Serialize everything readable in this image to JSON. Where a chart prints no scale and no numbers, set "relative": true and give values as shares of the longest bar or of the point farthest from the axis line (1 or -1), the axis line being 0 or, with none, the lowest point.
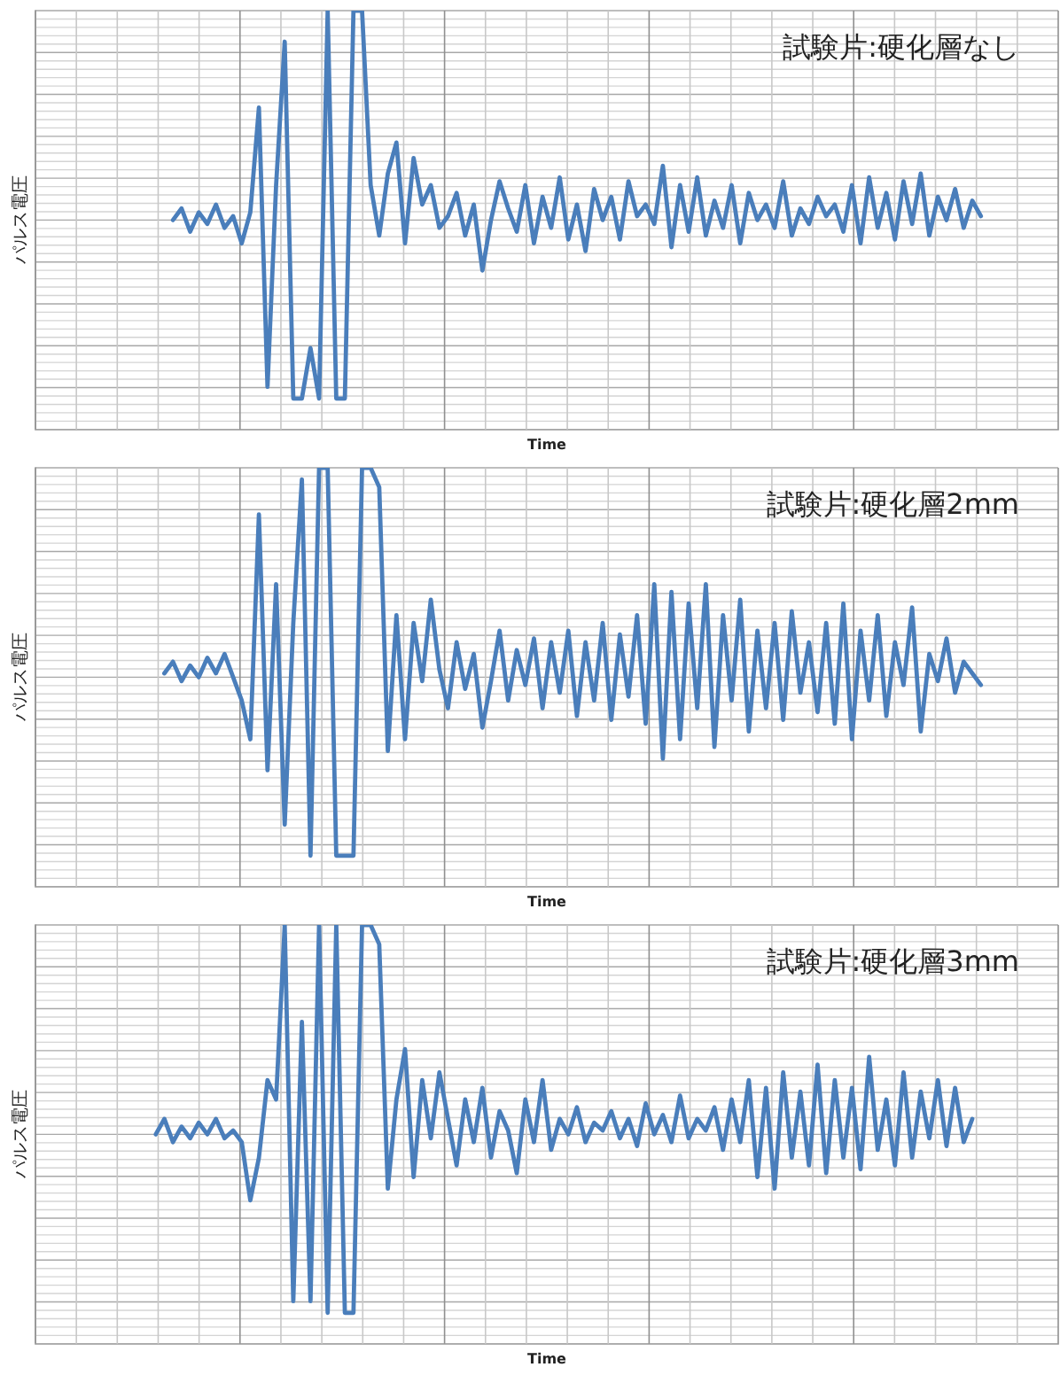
{
  "chart_data": [
    {
      "type": "line",
      "title": "試験片:硬化層なし",
      "xlabel": "Time",
      "ylabel": "パルス電圧",
      "relative": true,
      "grid": true,
      "tick_labels": false,
      "marker": "none",
      "categories": [
        null,
        null,
        null,
        null,
        null,
        null,
        null,
        null,
        null,
        null,
        null,
        null,
        null,
        null,
        null,
        null,
        null,
        null,
        null,
        null,
        null,
        null,
        null,
        null,
        null,
        null,
        null,
        null,
        null,
        null,
        null,
        null,
        null,
        null,
        null,
        null,
        null,
        null,
        null,
        null,
        null,
        null,
        null,
        null,
        null,
        null,
        null,
        null,
        null,
        null,
        null,
        null,
        null,
        null,
        null,
        null,
        null,
        null,
        null,
        null,
        null,
        null,
        null,
        null,
        null,
        null,
        null,
        null,
        null,
        null,
        null,
        null,
        null,
        null,
        null,
        null,
        null,
        null,
        null,
        null,
        null,
        null,
        null,
        null,
        null,
        null,
        null,
        null,
        null,
        null,
        null,
        null,
        null,
        null,
        null,
        null,
        null,
        null,
        null,
        null,
        null,
        null,
        null,
        null,
        null,
        null,
        null,
        null,
        null,
        null,
        null,
        null,
        null,
        null,
        null,
        null,
        null,
        null,
        null,
        null
      ],
      "series": [
        {
          "color": "#4a7ebb",
          "values": [
            null,
            null,
            null,
            null,
            null,
            null,
            null,
            null,
            null,
            null,
            null,
            null,
            null,
            null,
            null,
            null,
            0.46,
            0.49,
            0.43,
            0.48,
            0.45,
            0.5,
            0.44,
            0.47,
            0.4,
            0.48,
            0.75,
            0.03,
            0.55,
            0.92,
            0,
            0,
            0.13,
            0,
            1,
            0,
            0,
            1,
            1,
            0.55,
            0.42,
            0.58,
            0.66,
            0.4,
            0.62,
            0.5,
            0.55,
            0.44,
            0.47,
            0.53,
            0.42,
            0.5,
            0.33,
            0.46,
            0.56,
            0.49,
            0.43,
            0.55,
            0.4,
            0.52,
            0.44,
            0.57,
            0.41,
            0.5,
            0.38,
            0.54,
            0.46,
            0.52,
            0.41,
            0.56,
            0.47,
            0.5,
            0.45,
            0.6,
            0.39,
            0.55,
            0.43,
            0.57,
            0.42,
            0.51,
            0.44,
            0.55,
            0.4,
            0.53,
            0.46,
            0.5,
            0.44,
            0.56,
            0.42,
            0.49,
            0.45,
            0.52,
            0.47,
            0.5,
            0.43,
            0.55,
            0.4,
            0.57,
            0.44,
            0.53,
            0.41,
            0.56,
            0.45,
            0.58,
            0.42,
            0.52,
            0.46,
            0.54,
            0.44,
            0.51,
            0.47,
            null,
            null,
            null,
            null,
            null,
            null,
            null,
            null,
            null
          ]
        }
      ]
    },
    {
      "type": "line",
      "title": "試験片:硬化層2mm",
      "xlabel": "Time",
      "ylabel": "パルス電圧",
      "relative": true,
      "grid": true,
      "tick_labels": false,
      "marker": "none",
      "categories": [
        null,
        null,
        null,
        null,
        null,
        null,
        null,
        null,
        null,
        null,
        null,
        null,
        null,
        null,
        null,
        null,
        null,
        null,
        null,
        null,
        null,
        null,
        null,
        null,
        null,
        null,
        null,
        null,
        null,
        null,
        null,
        null,
        null,
        null,
        null,
        null,
        null,
        null,
        null,
        null,
        null,
        null,
        null,
        null,
        null,
        null,
        null,
        null,
        null,
        null,
        null,
        null,
        null,
        null,
        null,
        null,
        null,
        null,
        null,
        null,
        null,
        null,
        null,
        null,
        null,
        null,
        null,
        null,
        null,
        null,
        null,
        null,
        null,
        null,
        null,
        null,
        null,
        null,
        null,
        null,
        null,
        null,
        null,
        null,
        null,
        null,
        null,
        null,
        null,
        null,
        null,
        null,
        null,
        null,
        null,
        null,
        null,
        null,
        null,
        null,
        null,
        null,
        null,
        null,
        null,
        null,
        null,
        null,
        null,
        null,
        null,
        null,
        null,
        null,
        null,
        null,
        null,
        null,
        null,
        null
      ],
      "series": [
        {
          "color": "#4a7ebb",
          "values": [
            null,
            null,
            null,
            null,
            null,
            null,
            null,
            null,
            null,
            null,
            null,
            null,
            null,
            null,
            null,
            0.47,
            0.5,
            0.45,
            0.49,
            0.46,
            0.51,
            0.47,
            0.52,
            0.46,
            0.4,
            0.3,
            0.88,
            0.22,
            0.7,
            0.08,
            0.6,
            0.97,
            0,
            1,
            1,
            0,
            0,
            0,
            1,
            1,
            0.95,
            0.27,
            0.62,
            0.3,
            0.6,
            0.45,
            0.66,
            0.48,
            0.38,
            0.55,
            0.43,
            0.52,
            0.33,
            0.45,
            0.58,
            0.4,
            0.53,
            0.44,
            0.56,
            0.38,
            0.55,
            0.42,
            0.58,
            0.36,
            0.55,
            0.4,
            0.6,
            0.35,
            0.57,
            0.41,
            0.62,
            0.34,
            0.7,
            0.25,
            0.68,
            0.3,
            0.65,
            0.38,
            0.7,
            0.28,
            0.62,
            0.4,
            0.66,
            0.32,
            0.58,
            0.38,
            0.6,
            0.35,
            0.63,
            0.42,
            0.55,
            0.37,
            0.6,
            0.34,
            0.65,
            0.3,
            0.58,
            0.4,
            0.62,
            0.36,
            0.55,
            0.44,
            0.64,
            0.32,
            0.52,
            0.45,
            0.56,
            0.42,
            0.5,
            0.47,
            0.44,
            null,
            null,
            null,
            null,
            null,
            null,
            null,
            null,
            null
          ]
        }
      ]
    },
    {
      "type": "line",
      "title": "試験片:硬化層3mm",
      "xlabel": "Time",
      "ylabel": "パルス電圧",
      "relative": true,
      "grid": true,
      "tick_labels": false,
      "marker": "none",
      "categories": [
        null,
        null,
        null,
        null,
        null,
        null,
        null,
        null,
        null,
        null,
        null,
        null,
        null,
        null,
        null,
        null,
        null,
        null,
        null,
        null,
        null,
        null,
        null,
        null,
        null,
        null,
        null,
        null,
        null,
        null,
        null,
        null,
        null,
        null,
        null,
        null,
        null,
        null,
        null,
        null,
        null,
        null,
        null,
        null,
        null,
        null,
        null,
        null,
        null,
        null,
        null,
        null,
        null,
        null,
        null,
        null,
        null,
        null,
        null,
        null,
        null,
        null,
        null,
        null,
        null,
        null,
        null,
        null,
        null,
        null,
        null,
        null,
        null,
        null,
        null,
        null,
        null,
        null,
        null,
        null,
        null,
        null,
        null,
        null,
        null,
        null,
        null,
        null,
        null,
        null,
        null,
        null,
        null,
        null,
        null,
        null,
        null,
        null,
        null,
        null,
        null,
        null,
        null,
        null,
        null,
        null,
        null,
        null,
        null,
        null,
        null,
        null,
        null,
        null,
        null,
        null,
        null,
        null,
        null,
        null
      ],
      "series": [
        {
          "color": "#4a7ebb",
          "values": [
            null,
            null,
            null,
            null,
            null,
            null,
            null,
            null,
            null,
            null,
            null,
            null,
            null,
            null,
            0.46,
            0.5,
            0.44,
            0.48,
            0.45,
            0.49,
            0.46,
            0.5,
            0.45,
            0.47,
            0.44,
            0.29,
            0.4,
            0.6,
            0.55,
            1,
            0.03,
            0.75,
            0.03,
            1,
            0,
            1,
            0,
            0,
            1,
            1,
            0.95,
            0.32,
            0.55,
            0.68,
            0.35,
            0.6,
            0.45,
            0.62,
            0.5,
            0.38,
            0.55,
            0.44,
            0.58,
            0.4,
            0.52,
            0.47,
            0.36,
            0.55,
            0.44,
            0.6,
            0.42,
            0.5,
            0.46,
            0.53,
            0.44,
            0.49,
            0.47,
            0.52,
            0.45,
            0.5,
            0.43,
            0.54,
            0.46,
            0.51,
            0.44,
            0.56,
            0.45,
            0.5,
            0.47,
            0.53,
            0.42,
            0.55,
            0.44,
            0.6,
            0.35,
            0.58,
            0.32,
            0.62,
            0.4,
            0.57,
            0.38,
            0.64,
            0.36,
            0.6,
            0.4,
            0.58,
            0.37,
            0.66,
            0.42,
            0.55,
            0.38,
            0.62,
            0.4,
            0.57,
            0.45,
            0.6,
            0.43,
            0.58,
            0.44,
            0.5,
            null,
            null,
            null,
            null,
            null,
            null,
            null,
            null,
            null,
            null
          ]
        }
      ]
    }
  ]
}
